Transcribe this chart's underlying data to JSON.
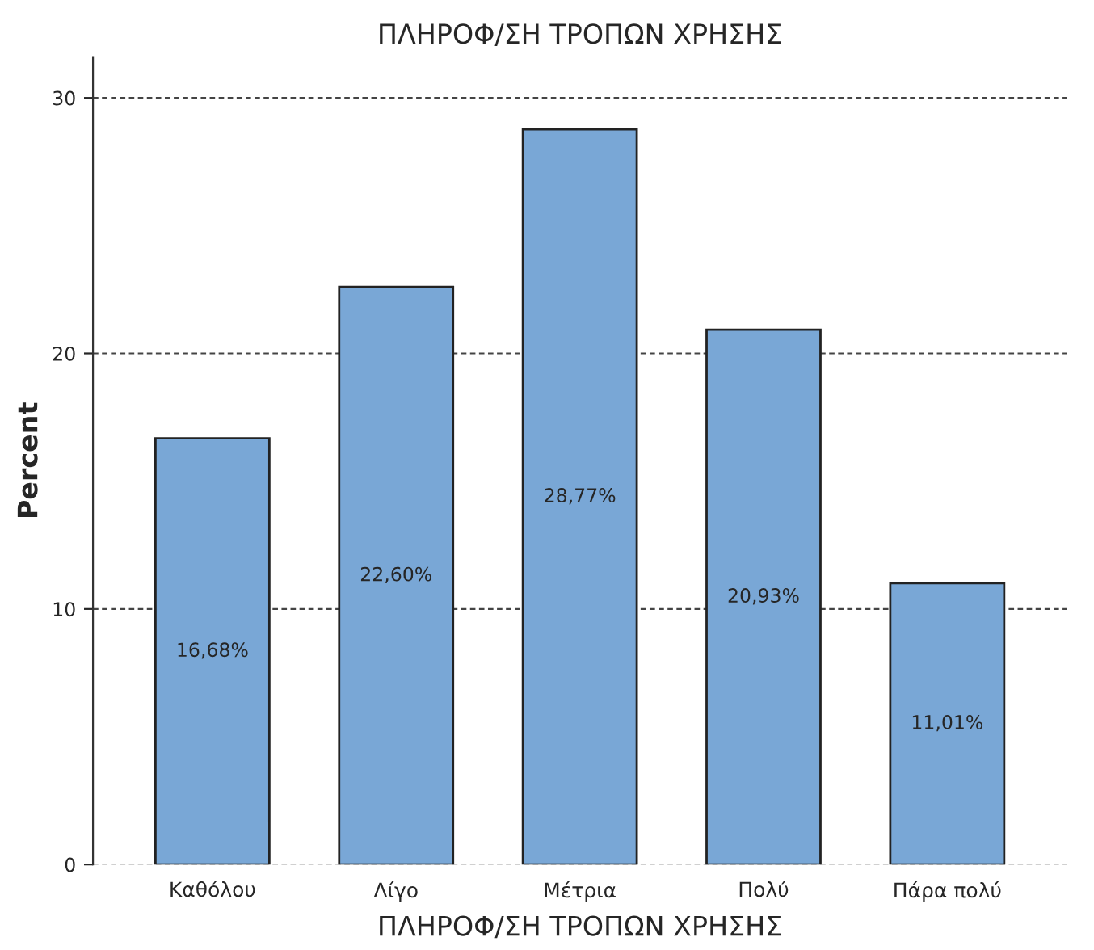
{
  "chart_data": {
    "type": "bar",
    "title": "ΠΛΗΡΟΦ/ΣΗ ΤΡΟΠΩΝ ΧΡΗΣΗΣ",
    "xlabel": "ΠΛΗΡΟΦ/ΣΗ ΤΡΟΠΩΝ ΧΡΗΣΗΣ",
    "ylabel": "Percent",
    "categories": [
      "Καθόλου",
      "Λίγο",
      "Μέτρια",
      "Πολύ",
      "Πάρα πολύ"
    ],
    "values": [
      16.68,
      22.6,
      28.77,
      20.93,
      11.01
    ],
    "value_labels": [
      "16,68%",
      "22,60%",
      "28,77%",
      "20,93%",
      "11,01%"
    ],
    "color": "#79a7d6",
    "ylim": [
      0,
      31.6
    ],
    "yticks": [
      0,
      10,
      20,
      30
    ],
    "grid": "y"
  }
}
